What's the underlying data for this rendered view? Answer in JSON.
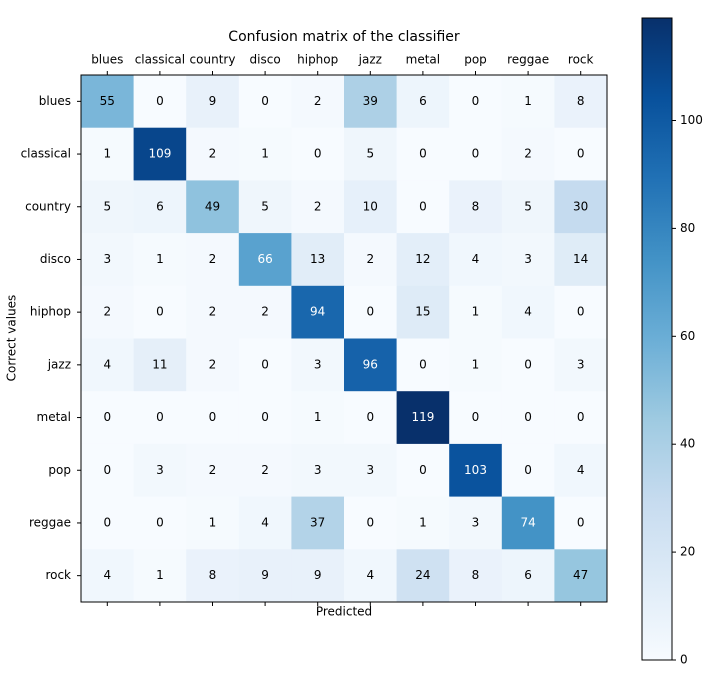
{
  "chart_data": {
    "type": "heatmap",
    "title": "Confusion matrix of the classifier",
    "x_label": "Predicted",
    "y_label": "Correct values",
    "x_categories": [
      "blues",
      "classical",
      "country",
      "disco",
      "hiphop",
      "jazz",
      "metal",
      "pop",
      "reggae",
      "rock"
    ],
    "y_categories": [
      "blues",
      "classical",
      "country",
      "disco",
      "hiphop",
      "jazz",
      "metal",
      "pop",
      "reggae",
      "rock"
    ],
    "values": [
      [
        55,
        0,
        9,
        0,
        2,
        39,
        6,
        0,
        1,
        8
      ],
      [
        1,
        109,
        2,
        1,
        0,
        5,
        0,
        0,
        2,
        0
      ],
      [
        5,
        6,
        49,
        5,
        2,
        10,
        0,
        8,
        5,
        30
      ],
      [
        3,
        1,
        2,
        66,
        13,
        2,
        12,
        4,
        3,
        14
      ],
      [
        2,
        0,
        2,
        2,
        94,
        0,
        15,
        1,
        4,
        0
      ],
      [
        4,
        11,
        2,
        0,
        3,
        96,
        0,
        1,
        0,
        3
      ],
      [
        0,
        0,
        0,
        0,
        1,
        0,
        119,
        0,
        0,
        0
      ],
      [
        0,
        3,
        2,
        2,
        3,
        3,
        0,
        103,
        0,
        4
      ],
      [
        0,
        0,
        1,
        4,
        37,
        0,
        1,
        3,
        74,
        0
      ],
      [
        4,
        1,
        8,
        9,
        9,
        4,
        24,
        8,
        6,
        47
      ]
    ],
    "colormap": "Blues",
    "clim": [
      0,
      119
    ],
    "cticks": [
      0,
      20,
      40,
      60,
      80,
      100
    ]
  }
}
